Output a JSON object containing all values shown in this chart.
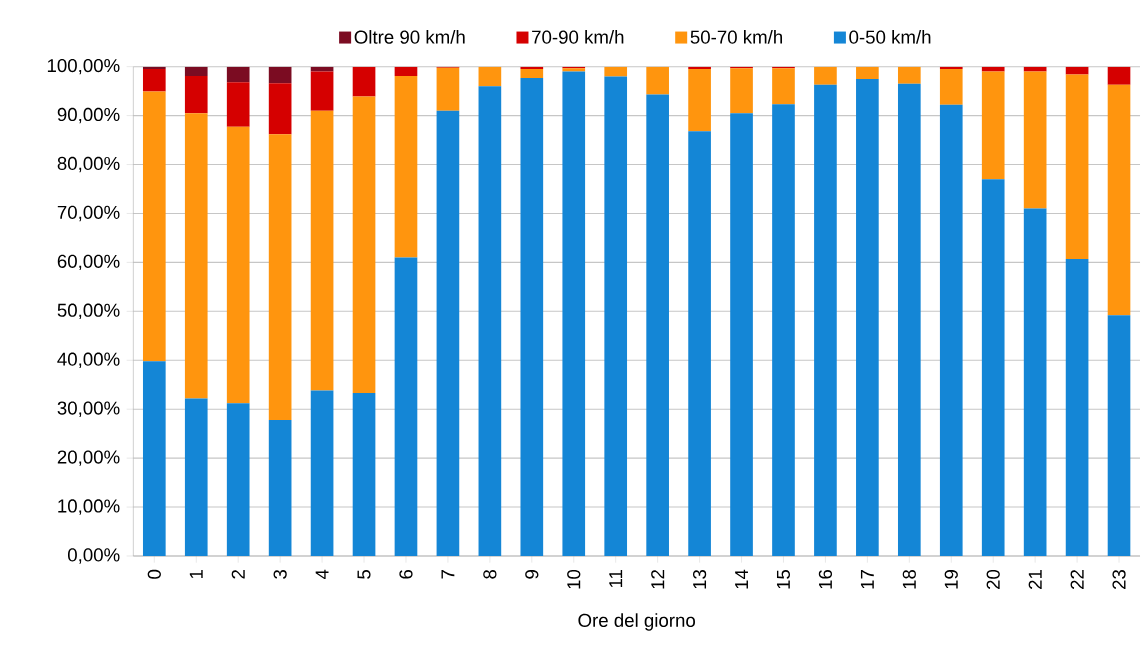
{
  "chart_data": {
    "type": "bar",
    "stacked": true,
    "xlabel": "Ore del giorno",
    "categories": [
      "0",
      "1",
      "2",
      "3",
      "4",
      "5",
      "6",
      "7",
      "8",
      "9",
      "10",
      "11",
      "12",
      "13",
      "14",
      "15",
      "16",
      "17",
      "18",
      "19",
      "20",
      "21",
      "22",
      "23"
    ],
    "series": [
      {
        "name": "0-50 km/h",
        "color": "#1486d6",
        "values": [
          39.8,
          32.2,
          31.2,
          27.8,
          33.8,
          33.3,
          61.0,
          91.0,
          96.0,
          97.7,
          99.0,
          98.0,
          94.3,
          86.8,
          90.5,
          92.3,
          96.3,
          97.5,
          96.5,
          92.2,
          77.0,
          71.0,
          60.7,
          49.2
        ]
      },
      {
        "name": "50-70 km/h",
        "color": "#ff950e",
        "values": [
          55.1,
          58.3,
          56.5,
          58.4,
          57.2,
          60.6,
          37.1,
          8.8,
          4.0,
          1.8,
          0.7,
          2.0,
          5.7,
          12.7,
          9.2,
          7.4,
          3.7,
          2.5,
          3.5,
          7.3,
          22.0,
          28.0,
          37.7,
          47.1
        ]
      },
      {
        "name": "70-90 km/h",
        "color": "#d50000",
        "values": [
          4.6,
          7.6,
          9.1,
          10.4,
          8.0,
          6.1,
          1.9,
          0.2,
          0,
          0.5,
          0.3,
          0,
          0,
          0.5,
          0.3,
          0.3,
          0,
          0,
          0,
          0.5,
          1.0,
          1.0,
          1.6,
          3.7
        ]
      },
      {
        "name": "Oltre 90 km/h",
        "color": "#7b0c22",
        "values": [
          0.5,
          1.9,
          3.2,
          3.4,
          1.0,
          0,
          0,
          0,
          0,
          0,
          0,
          0,
          0,
          0,
          0,
          0,
          0,
          0,
          0,
          0,
          0,
          0,
          0,
          0
        ]
      }
    ],
    "ylim": [
      0,
      100
    ],
    "yticks": [
      {
        "value": 0,
        "label": "0,00%"
      },
      {
        "value": 10,
        "label": "10,00%"
      },
      {
        "value": 20,
        "label": "20,00%"
      },
      {
        "value": 30,
        "label": "30,00%"
      },
      {
        "value": 40,
        "label": "40,00%"
      },
      {
        "value": 50,
        "label": "50,00%"
      },
      {
        "value": 60,
        "label": "60,00%"
      },
      {
        "value": 70,
        "label": "70,00%"
      },
      {
        "value": 80,
        "label": "80,00%"
      },
      {
        "value": 90,
        "label": "90,00%"
      },
      {
        "value": 100,
        "label": "100,00%"
      }
    ],
    "grid": "y",
    "legend": "top"
  }
}
